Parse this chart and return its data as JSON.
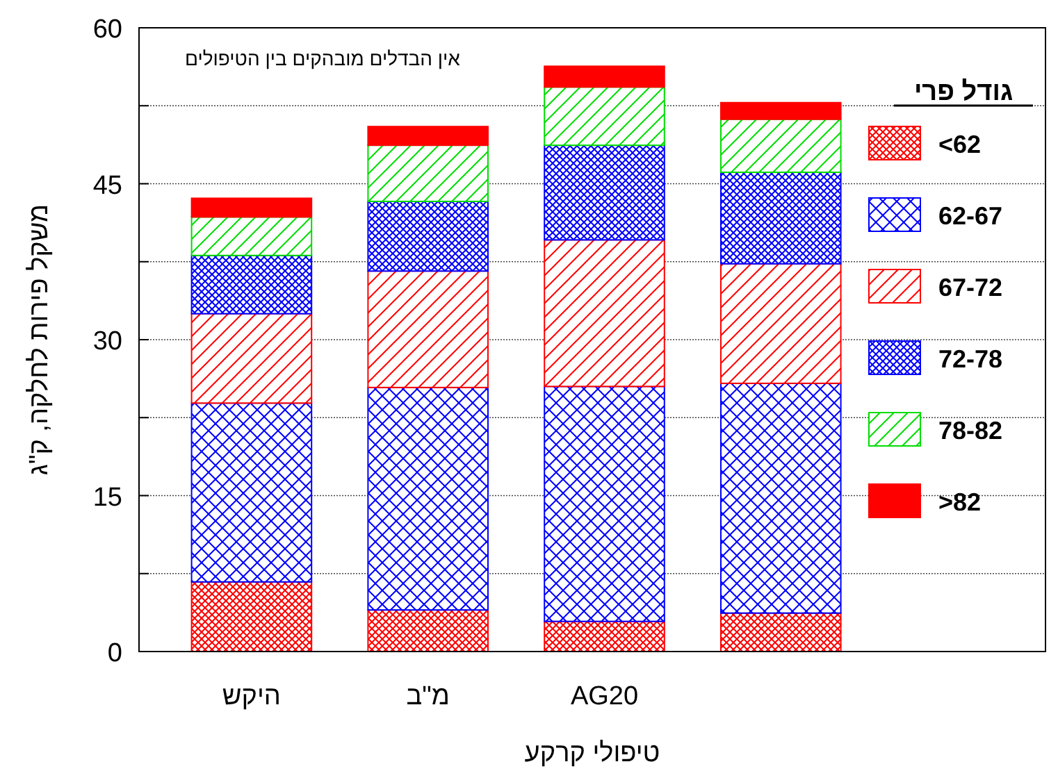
{
  "chart_data": {
    "type": "bar",
    "stacked": true,
    "categories": [
      "היקש",
      "מ\"ב",
      "AG20",
      null,
      null
    ],
    "xlabel": "טיפולי קרקע",
    "ylabel": "משקל פירות לחלקה, ק\"ג",
    "annotations": [
      "אין הבדלים מובהקים בין הטיפולים"
    ],
    "legend_title": "גודל פרי",
    "legend": "right",
    "ylim": [
      0,
      60
    ],
    "yticks": [
      0,
      {
        "value": 7.5,
        "label": null
      },
      15,
      {
        "value": 22.5,
        "label": null
      },
      30,
      {
        "value": 37.5,
        "label": null
      },
      45,
      {
        "value": 52.5,
        "label": null
      },
      60
    ],
    "grid": "y",
    "series": [
      {
        "name": "<62",
        "color": "#ff0000",
        "values": [
          6.7,
          4.0,
          2.9,
          3.7,
          null
        ]
      },
      {
        "name": "62-67",
        "color": "#0000ff",
        "values": [
          17.2,
          21.4,
          22.6,
          22.1,
          null
        ]
      },
      {
        "name": "67-72",
        "color": "#ff0000",
        "values": [
          8.6,
          11.2,
          14.1,
          11.5,
          null
        ]
      },
      {
        "name": "72-78",
        "color": "#0000ff",
        "values": [
          5.6,
          6.7,
          9.1,
          8.8,
          null
        ]
      },
      {
        "name": "78-82",
        "color": "#00dd00",
        "values": [
          3.7,
          5.4,
          5.6,
          5.1,
          null
        ]
      },
      {
        "name": ">82",
        "color": "#ff0000",
        "values": [
          1.8,
          1.8,
          2.0,
          1.6,
          null
        ]
      }
    ]
  }
}
